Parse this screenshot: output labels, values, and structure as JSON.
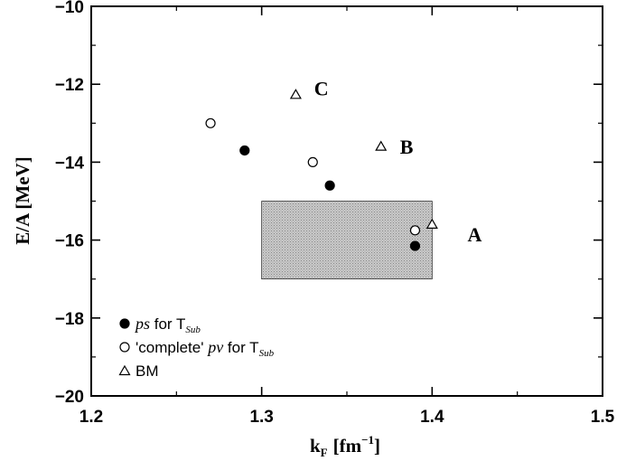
{
  "chart_data": {
    "type": "scatter",
    "title": "",
    "xlabel": "k",
    "xlabel_sub": "F",
    "xlabel_unit": "[fm",
    "xlabel_exp": "−1",
    "xlabel_close": "]",
    "ylabel": "E/A [MeV]",
    "xlim": [
      1.2,
      1.5
    ],
    "ylim": [
      -20,
      -10
    ],
    "x_ticks": [
      1.2,
      1.3,
      1.4,
      1.5
    ],
    "x_tick_labels": [
      "1.2",
      "1.3",
      "1.4",
      "1.5"
    ],
    "y_ticks": [
      -20,
      -18,
      -16,
      -14,
      -12,
      -10
    ],
    "y_tick_labels": [
      "−20",
      "−18",
      "−16",
      "−14",
      "−12",
      "−10"
    ],
    "grid": false,
    "legend_position": "bottom-left",
    "empirical_box": {
      "x_range": [
        1.3,
        1.4
      ],
      "y_range": [
        -17,
        -15
      ]
    },
    "series": [
      {
        "label_italic": "ps",
        "label_mid": " for T",
        "label_sub": "Sub",
        "marker": "filled-circle",
        "points": [
          [
            1.29,
            -13.7
          ],
          [
            1.34,
            -14.6
          ],
          [
            1.39,
            -16.15
          ]
        ]
      },
      {
        "label_pre": "'complete' ",
        "label_italic": "pv",
        "label_mid": " for T",
        "label_sub": "Sub",
        "marker": "open-circle",
        "points": [
          [
            1.27,
            -13.0
          ],
          [
            1.33,
            -14.0
          ],
          [
            1.39,
            -15.75
          ]
        ]
      },
      {
        "label_pre": "BM",
        "marker": "open-triangle",
        "points": [
          [
            1.32,
            -12.27
          ],
          [
            1.37,
            -13.6
          ],
          [
            1.4,
            -15.6
          ]
        ]
      }
    ],
    "annotations": [
      {
        "text": "A",
        "x": 1.425,
        "y": -15.85
      },
      {
        "text": "B",
        "x": 1.385,
        "y": -13.6
      },
      {
        "text": "C",
        "x": 1.335,
        "y": -12.1
      }
    ]
  }
}
